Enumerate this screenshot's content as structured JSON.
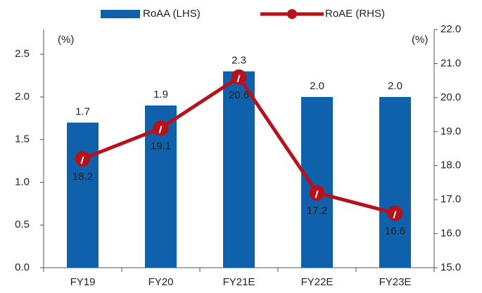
{
  "chart_data": {
    "type": "bar-line",
    "categories": [
      "FY19",
      "FY20",
      "FY21E",
      "FY22E",
      "FY23E"
    ],
    "series": [
      {
        "name": "RoAA (LHS)",
        "type": "bar",
        "color": "#1061ab",
        "values": [
          1.7,
          1.9,
          2.3,
          2.0,
          2.0
        ],
        "value_labels": [
          "1.7",
          "1.9",
          "2.3",
          "2.0",
          "2.0"
        ]
      },
      {
        "name": "RoAE (RHS)",
        "type": "line",
        "axis": "y2",
        "color": "#b5121b",
        "values": [
          18.2,
          19.1,
          20.6,
          17.2,
          16.6
        ]
      }
    ],
    "ylabel": "(%)",
    "y2label": "(%)",
    "ylim": [
      0,
      2.79
    ],
    "yticks": [
      {
        "value": 0,
        "label": "0.0"
      },
      {
        "value": 0.5,
        "label": "0.5"
      },
      {
        "value": 1,
        "label": "1.0"
      },
      {
        "value": 1.5,
        "label": "1.5"
      },
      {
        "value": 2,
        "label": "2.0"
      },
      {
        "value": 2.5,
        "label": "2.5"
      }
    ],
    "y2lim": [
      15,
      22
    ],
    "y2ticks": [
      {
        "value": 15,
        "label": "15.0"
      },
      {
        "value": 16,
        "label": "16.0"
      },
      {
        "value": 17,
        "label": "17.0"
      },
      {
        "value": 18,
        "label": "18.0"
      },
      {
        "value": 19,
        "label": "19.0"
      },
      {
        "value": 20,
        "label": "20.0"
      },
      {
        "value": 21,
        "label": "21.0"
      },
      {
        "value": 22,
        "label": "22.0"
      }
    ],
    "legend": "top"
  }
}
